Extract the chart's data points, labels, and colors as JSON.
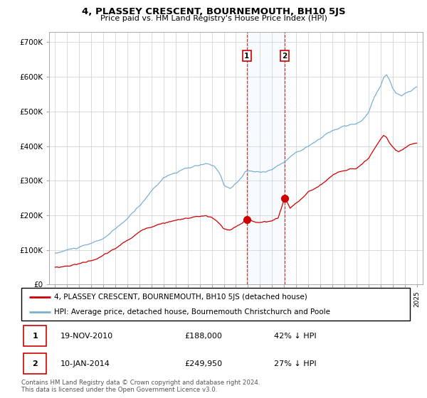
{
  "title": "4, PLASSEY CRESCENT, BOURNEMOUTH, BH10 5JS",
  "subtitle": "Price paid vs. HM Land Registry's House Price Index (HPI)",
  "ylabel_ticks": [
    "£0",
    "£100K",
    "£200K",
    "£300K",
    "£400K",
    "£500K",
    "£600K",
    "£700K"
  ],
  "ytick_values": [
    0,
    100000,
    200000,
    300000,
    400000,
    500000,
    600000,
    700000
  ],
  "ylim": [
    0,
    730000
  ],
  "hpi_color": "#7ab0d4",
  "price_color": "#cc0000",
  "transaction1_date": "19-NOV-2010",
  "transaction1_price": 188000,
  "transaction1_pct": "42%",
  "transaction2_date": "10-JAN-2014",
  "transaction2_price": 249950,
  "transaction2_pct": "27%",
  "legend_line1": "4, PLASSEY CRESCENT, BOURNEMOUTH, BH10 5JS (detached house)",
  "legend_line2": "HPI: Average price, detached house, Bournemouth Christchurch and Poole",
  "footer": "Contains HM Land Registry data © Crown copyright and database right 2024.\nThis data is licensed under the Open Government Licence v3.0.",
  "trans1_x": 2010.9,
  "trans2_x": 2014.05,
  "trans1_y": 188000,
  "trans2_y": 249950,
  "vline1_x": 2010.9,
  "vline2_x": 2014.05,
  "grid_color": "#cccccc",
  "xlim_left": 1994.5,
  "xlim_right": 2025.5
}
